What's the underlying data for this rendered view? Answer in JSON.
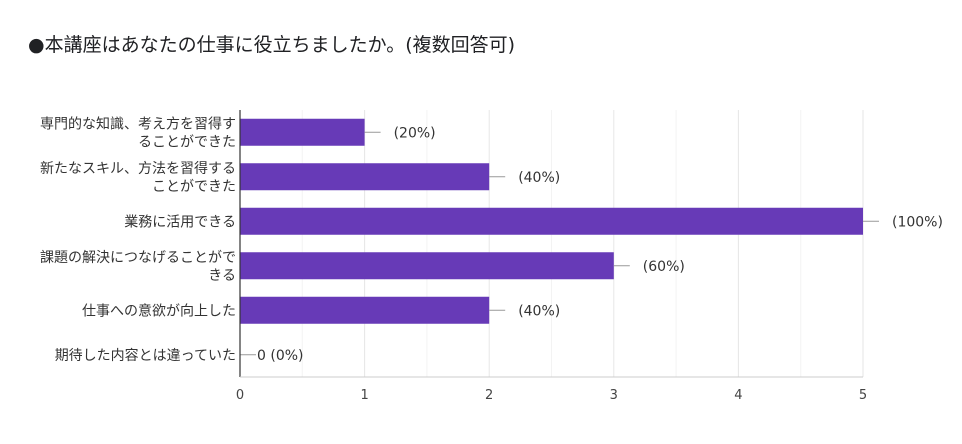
{
  "chart_data": {
    "type": "bar",
    "orientation": "horizontal",
    "title": "●本講座はあなたの仕事に役立ちましたか。(複数回答可)",
    "categories": [
      [
        "専門的な知識、考え方を習得す",
        "ることができた"
      ],
      [
        "新たなスキル、方法を習得する",
        "ことができた"
      ],
      [
        "業務に活用できる"
      ],
      [
        "課題の解決につなげることがで",
        "きる"
      ],
      [
        "仕事への意欲が向上した"
      ],
      [
        "期待した内容とは違っていた"
      ]
    ],
    "values": [
      1,
      2,
      5,
      3,
      2,
      0
    ],
    "data_labels": [
      "(20%)",
      "(40%)",
      "(100%)",
      "(60%)",
      "(40%)",
      "0 (0%)"
    ],
    "xlim": [
      0,
      5
    ],
    "xticks": [
      "0",
      "1",
      "2",
      "3",
      "4",
      "5"
    ],
    "xlabel": "",
    "ylabel": "",
    "grid": true,
    "colors": {
      "bar": "#673ab7",
      "grid": "#e6e6e6",
      "axis": "#333333",
      "whisker": "#999999"
    }
  }
}
